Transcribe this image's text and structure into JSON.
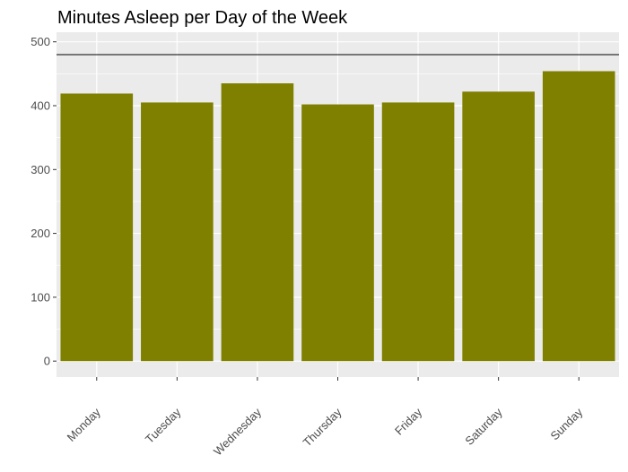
{
  "chart_data": {
    "type": "bar",
    "title": "Minutes Asleep per Day of the Week",
    "xlabel": "",
    "ylabel": "",
    "categories": [
      "Monday",
      "Tuesday",
      "Wednesday",
      "Thursday",
      "Friday",
      "Saturday",
      "Sunday"
    ],
    "values": [
      419,
      405,
      435,
      402,
      405,
      422,
      454
    ],
    "ylim": [
      -25,
      515
    ],
    "yticks": [
      0,
      100,
      200,
      300,
      400,
      500
    ],
    "reference_line": 480,
    "bar_color": "#808000",
    "panel_color": "#ebebeb",
    "grid": true,
    "legend": "none"
  }
}
